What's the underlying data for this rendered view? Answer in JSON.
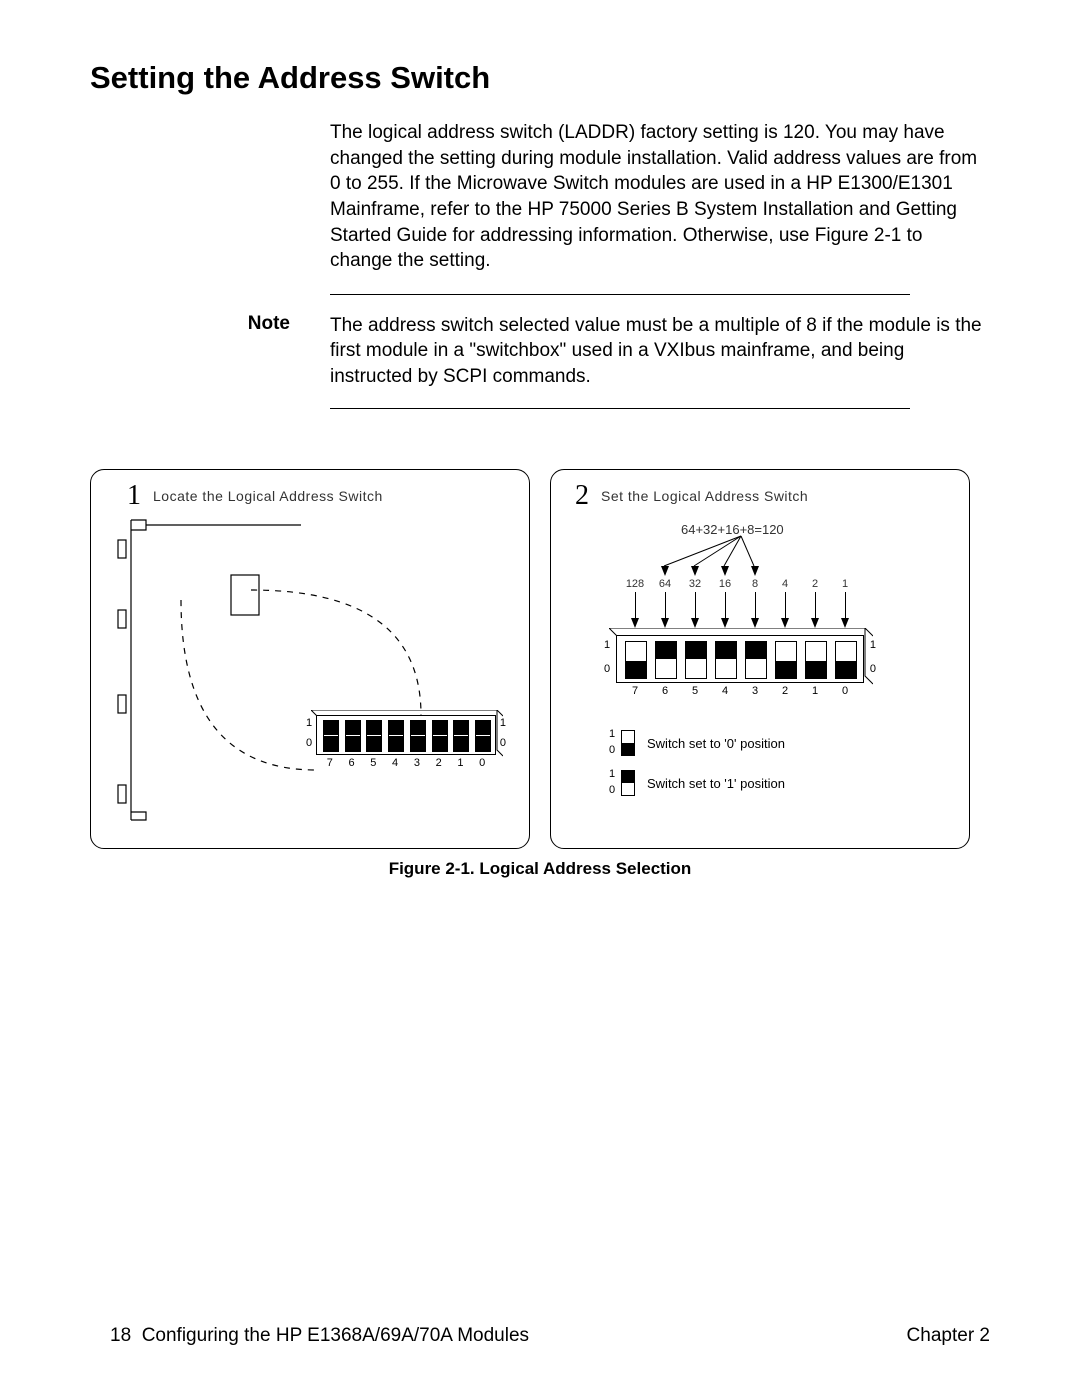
{
  "heading": "Setting the Address Switch",
  "intro": "The logical address switch (LADDR) factory setting is 120.  You may have changed the setting during module installation.  Valid address values are from 0 to 255.  If the Microwave Switch modules are used in a HP E1300/E1301 Mainframe, refer to the HP 75000 Series B System Installation and Getting Started Guide for addressing information. Otherwise, use Figure 2-1 to change the setting.",
  "note_label": "Note",
  "note_body": "The address switch selected value must be a multiple of 8 if the module is the first module in a \"switchbox\" used in a VXIbus mainframe, and being instructed by SCPI commands.",
  "figure": {
    "panel1": {
      "num": "1",
      "title": "Locate the Logical Address Switch",
      "dip_labels_bottom": [
        "7",
        "6",
        "5",
        "4",
        "3",
        "2",
        "1",
        "0"
      ],
      "dip_side_top": "1",
      "dip_side_bottom": "0"
    },
    "panel2": {
      "num": "2",
      "title": "Set the Logical Address Switch",
      "equation": "64+32+16+8=120",
      "bit_values": [
        "128",
        "64",
        "32",
        "16",
        "8",
        "4",
        "2",
        "1"
      ],
      "dip_positions": [
        0,
        1,
        1,
        1,
        1,
        0,
        0,
        0
      ],
      "dip_labels_bottom": [
        "7",
        "6",
        "5",
        "4",
        "3",
        "2",
        "1",
        "0"
      ],
      "dip_side_top": "1",
      "dip_side_bottom": "0",
      "legend0": "Switch set to '0' position",
      "legend1": "Switch set to '1' position"
    },
    "caption": "Figure 2-1.  Logical Address Selection"
  },
  "footer": {
    "page": "18",
    "left": "Configuring the HP E1368A/69A/70A Modules",
    "right": "Chapter 2"
  },
  "colors": {
    "text": "#000000",
    "bg": "#ffffff",
    "rule": "#000000"
  }
}
